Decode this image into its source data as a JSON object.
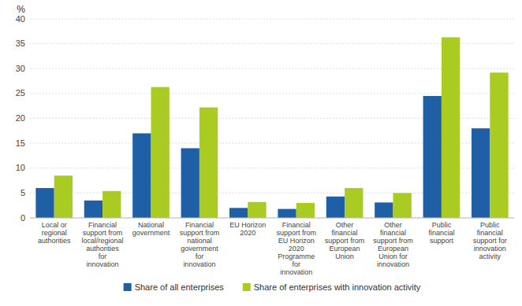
{
  "chart_data": {
    "type": "bar",
    "categories": [
      "Local or\nregional\nauthorities",
      "Financial\nsupport from\nlocal/regional\nauthorities\nfor\ninnovation",
      "National\ngovernment",
      "Financial\nsupport from\nnational\ngovernment\nfor\ninnovation",
      "EU Horizon\n2020",
      "Financial\nsupport from\nEU Horizon\n2020\nProgramme\nfor\ninnovation",
      "Other\nfinancial\nsupport from\nEuropean\nUnion",
      "Other\nfinancial\nsupport from\nEuropean\nUnion for\ninnovation",
      "Public\nfinancial\nsupport",
      "Public\nfinancial\nsupport for\ninnovation\nactivity"
    ],
    "series": [
      {
        "name": "Share of all enterprises",
        "color": "#1F5FA6",
        "values": [
          6.0,
          3.5,
          17.0,
          14.0,
          2.0,
          1.8,
          4.3,
          3.1,
          24.5,
          18.0
        ]
      },
      {
        "name": "Share of enterprises with innovation activity",
        "color": "#AACC22",
        "values": [
          8.5,
          5.4,
          26.3,
          22.2,
          3.2,
          3.0,
          6.0,
          5.0,
          36.3,
          29.2
        ]
      }
    ],
    "ylabel": "%",
    "ylim": [
      0,
      40
    ],
    "yticks": [
      0,
      5,
      10,
      15,
      20,
      25,
      30,
      35,
      40
    ],
    "grid": true,
    "legend": "bottom"
  }
}
